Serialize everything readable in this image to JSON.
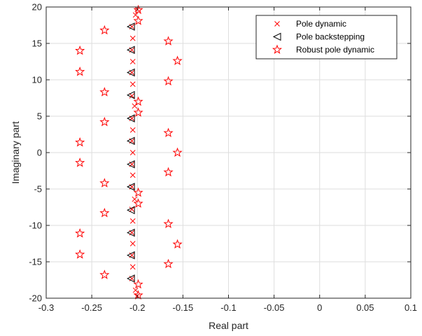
{
  "chart_data": {
    "type": "scatter",
    "xlabel": "Real part",
    "ylabel": "Imaginary part",
    "xlim": [
      -0.3,
      0.1
    ],
    "ylim": [
      -20,
      20
    ],
    "xticks": [
      -0.3,
      -0.25,
      -0.2,
      -0.15,
      -0.1,
      -0.05,
      0,
      0.05,
      0.1
    ],
    "xtick_labels": [
      "-0.3",
      "-0.25",
      "-0.2",
      "-0.15",
      "-0.1",
      "-0.05",
      "0",
      "0.05",
      "0.1"
    ],
    "yticks": [
      -20,
      -15,
      -10,
      -5,
      0,
      5,
      10,
      15,
      20
    ],
    "ytick_labels": [
      "-20",
      "-15",
      "-10",
      "-5",
      "0",
      "5",
      "10",
      "15",
      "20"
    ],
    "grid": true,
    "legend_position": "top-right",
    "series": [
      {
        "name": "Pole dynamic",
        "marker": "x",
        "color": "#ff0000",
        "points": [
          [
            -0.2,
            19.7
          ],
          [
            -0.202,
            18.9
          ],
          [
            -0.206,
            17.3
          ],
          [
            -0.205,
            15.7
          ],
          [
            -0.206,
            14.1
          ],
          [
            -0.205,
            12.5
          ],
          [
            -0.206,
            11.0
          ],
          [
            -0.205,
            9.4
          ],
          [
            -0.206,
            7.8
          ],
          [
            -0.203,
            6.4
          ],
          [
            -0.206,
            4.7
          ],
          [
            -0.205,
            3.1
          ],
          [
            -0.206,
            1.6
          ],
          [
            -0.205,
            0.0
          ],
          [
            -0.206,
            -1.6
          ],
          [
            -0.205,
            -3.1
          ],
          [
            -0.206,
            -4.7
          ],
          [
            -0.203,
            -6.4
          ],
          [
            -0.206,
            -7.8
          ],
          [
            -0.205,
            -9.4
          ],
          [
            -0.206,
            -11.0
          ],
          [
            -0.205,
            -12.5
          ],
          [
            -0.206,
            -14.1
          ],
          [
            -0.205,
            -15.7
          ],
          [
            -0.206,
            -17.3
          ],
          [
            -0.202,
            -18.9
          ],
          [
            -0.2,
            -19.7
          ]
        ]
      },
      {
        "name": "Pole backstepping",
        "marker": "triangle-left",
        "color": "#000000",
        "points": [
          [
            -0.207,
            17.3
          ],
          [
            -0.207,
            14.1
          ],
          [
            -0.207,
            11.0
          ],
          [
            -0.207,
            7.9
          ],
          [
            -0.207,
            4.7
          ],
          [
            -0.207,
            1.6
          ],
          [
            -0.207,
            -1.6
          ],
          [
            -0.207,
            -4.7
          ],
          [
            -0.207,
            -7.9
          ],
          [
            -0.207,
            -11.0
          ],
          [
            -0.207,
            -14.1
          ],
          [
            -0.207,
            -17.3
          ]
        ]
      },
      {
        "name": "Robust pole dynamic",
        "marker": "pentagram",
        "color": "#ff0000",
        "points": [
          [
            -0.199,
            19.6
          ],
          [
            -0.199,
            18.1
          ],
          [
            -0.236,
            16.8
          ],
          [
            -0.166,
            15.3
          ],
          [
            -0.263,
            14.0
          ],
          [
            -0.156,
            12.6
          ],
          [
            -0.263,
            11.1
          ],
          [
            -0.166,
            9.8
          ],
          [
            -0.236,
            8.3
          ],
          [
            -0.199,
            7.0
          ],
          [
            -0.199,
            5.5
          ],
          [
            -0.236,
            4.2
          ],
          [
            -0.166,
            2.7
          ],
          [
            -0.263,
            1.4
          ],
          [
            -0.156,
            0.0
          ],
          [
            -0.263,
            -1.4
          ],
          [
            -0.166,
            -2.7
          ],
          [
            -0.236,
            -4.2
          ],
          [
            -0.199,
            -5.5
          ],
          [
            -0.199,
            -7.0
          ],
          [
            -0.236,
            -8.3
          ],
          [
            -0.166,
            -9.8
          ],
          [
            -0.263,
            -11.1
          ],
          [
            -0.156,
            -12.6
          ],
          [
            -0.263,
            -14.0
          ],
          [
            -0.166,
            -15.3
          ],
          [
            -0.236,
            -16.8
          ],
          [
            -0.199,
            -18.1
          ],
          [
            -0.199,
            -19.6
          ]
        ]
      }
    ]
  }
}
